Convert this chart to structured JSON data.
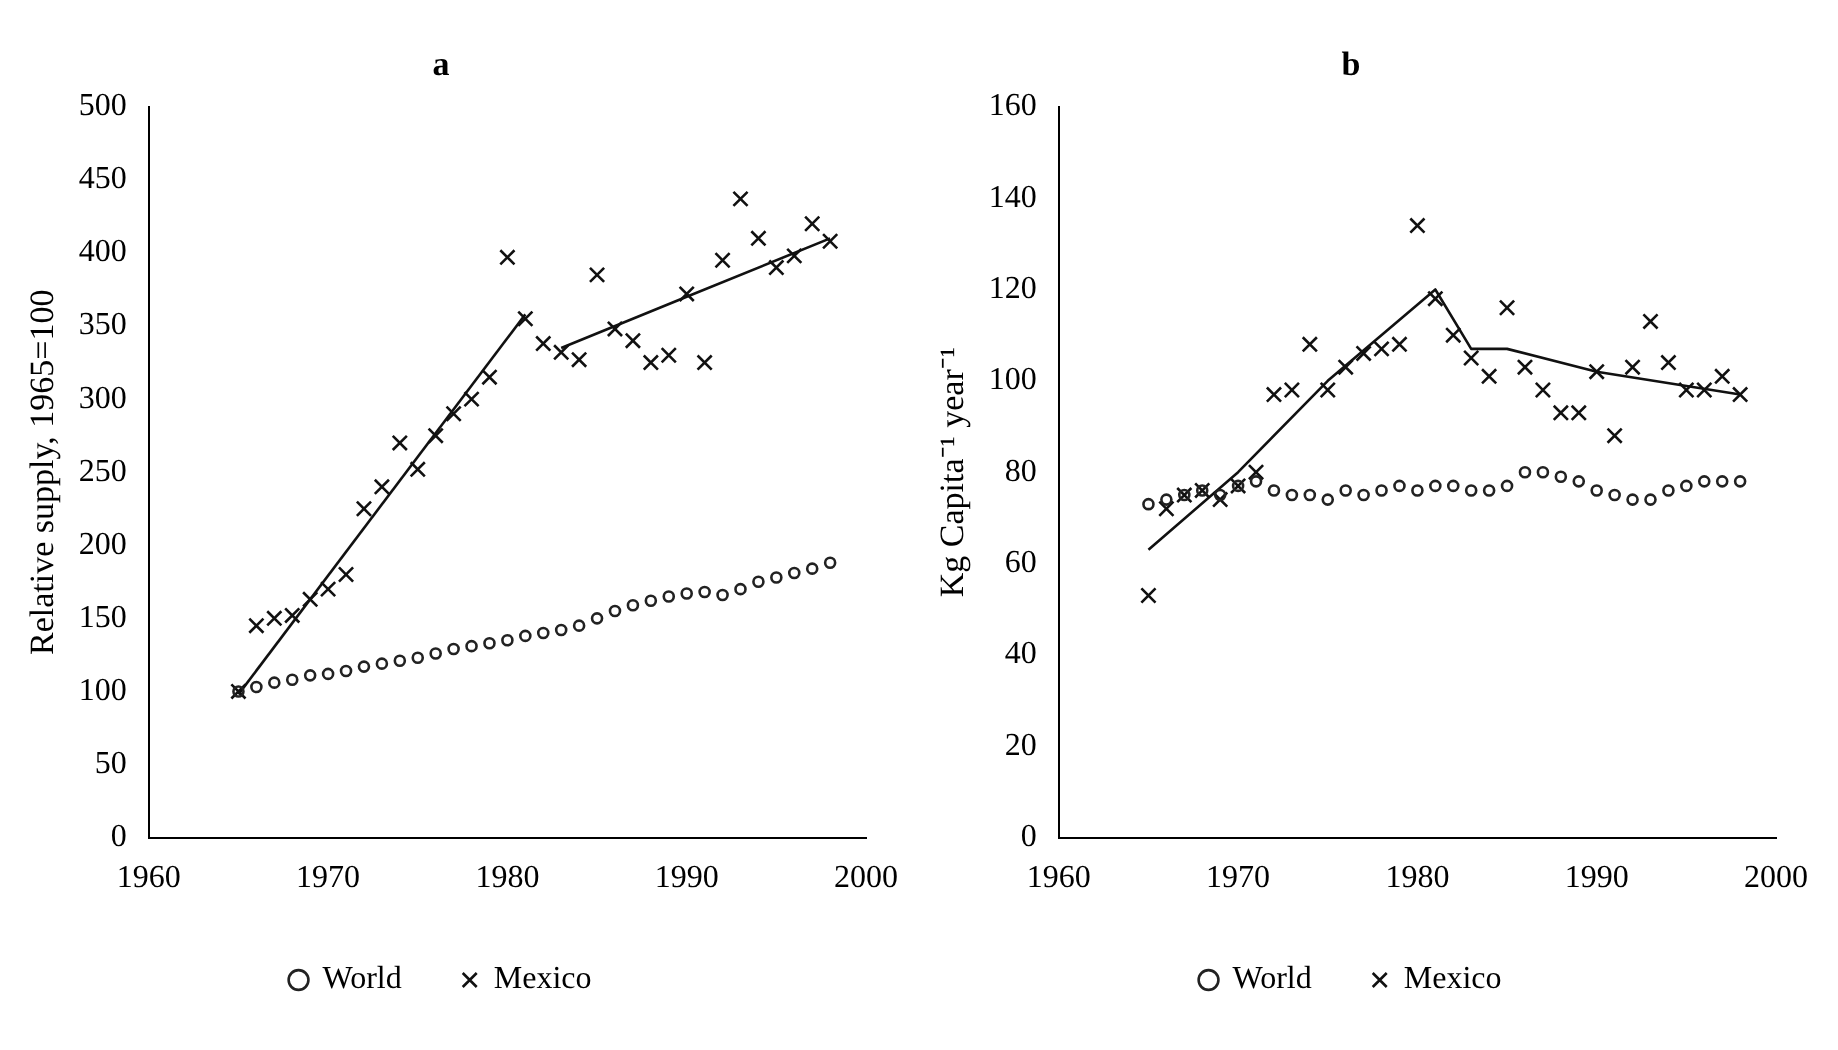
{
  "chart_data": [
    {
      "type": "scatter",
      "title": "a",
      "ylabel": "Relative supply, 1965=100",
      "xlim": [
        1960,
        2000
      ],
      "xticks": [
        1960,
        1970,
        1980,
        1990,
        2000
      ],
      "ylim": [
        0,
        500
      ],
      "yticks": [
        0,
        50,
        100,
        150,
        200,
        250,
        300,
        350,
        400,
        450,
        500
      ],
      "grid": false,
      "legend": "bottom",
      "x": [
        1965,
        1966,
        1967,
        1968,
        1969,
        1970,
        1971,
        1972,
        1973,
        1974,
        1975,
        1976,
        1977,
        1978,
        1979,
        1980,
        1981,
        1982,
        1983,
        1984,
        1985,
        1986,
        1987,
        1988,
        1989,
        1990,
        1991,
        1992,
        1993,
        1994,
        1995,
        1996,
        1997,
        1998
      ],
      "series": [
        {
          "name": "World",
          "type": "scatter",
          "marker": "circle",
          "color": "#222222",
          "values": [
            100,
            103,
            106,
            108,
            111,
            112,
            114,
            117,
            119,
            121,
            123,
            126,
            129,
            131,
            133,
            135,
            138,
            140,
            142,
            145,
            150,
            155,
            159,
            162,
            165,
            167,
            168,
            166,
            170,
            175,
            178,
            181,
            184,
            188
          ]
        },
        {
          "name": "Mexico",
          "type": "scatter",
          "marker": "cross",
          "color": "#111111",
          "values": [
            100,
            145,
            150,
            152,
            163,
            170,
            180,
            225,
            240,
            270,
            252,
            275,
            290,
            300,
            315,
            397,
            355,
            338,
            332,
            327,
            385,
            348,
            340,
            325,
            330,
            372,
            325,
            395,
            437,
            410,
            390,
            398,
            420,
            408
          ]
        },
        {
          "type": "line",
          "marker": "none",
          "color": "#111111",
          "x": [
            1965,
            1981
          ],
          "values": [
            98,
            358
          ]
        },
        {
          "type": "line",
          "marker": "none",
          "color": "#111111",
          "x": [
            1983,
            1990,
            1998
          ],
          "values": [
            335,
            370,
            410
          ]
        }
      ]
    },
    {
      "type": "scatter",
      "title": "b",
      "ylabel": "Kg Capita⁻¹ year⁻¹",
      "xlim": [
        1960,
        2000
      ],
      "xticks": [
        1960,
        1970,
        1980,
        1990,
        2000
      ],
      "ylim": [
        0,
        160
      ],
      "yticks": [
        0,
        20,
        40,
        60,
        80,
        100,
        120,
        140,
        160
      ],
      "grid": false,
      "legend": "bottom",
      "x": [
        1965,
        1966,
        1967,
        1968,
        1969,
        1970,
        1971,
        1972,
        1973,
        1974,
        1975,
        1976,
        1977,
        1978,
        1979,
        1980,
        1981,
        1982,
        1983,
        1984,
        1985,
        1986,
        1987,
        1988,
        1989,
        1990,
        1991,
        1992,
        1993,
        1994,
        1995,
        1996,
        1997,
        1998
      ],
      "series": [
        {
          "name": "World",
          "type": "scatter",
          "marker": "circle",
          "color": "#222222",
          "values": [
            73,
            74,
            75,
            76,
            75,
            77,
            78,
            76,
            75,
            75,
            74,
            76,
            75,
            76,
            77,
            76,
            77,
            77,
            76,
            76,
            77,
            80,
            80,
            79,
            78,
            76,
            75,
            74,
            74,
            76,
            77,
            78,
            78,
            78
          ]
        },
        {
          "name": "Mexico",
          "type": "scatter",
          "marker": "cross",
          "color": "#111111",
          "values": [
            53,
            72,
            75,
            76,
            74,
            77,
            80,
            97,
            98,
            108,
            98,
            103,
            106,
            107,
            108,
            134,
            118,
            110,
            105,
            101,
            116,
            103,
            98,
            93,
            93,
            102,
            88,
            103,
            113,
            104,
            98,
            98,
            101,
            97
          ]
        },
        {
          "type": "line",
          "marker": "none",
          "color": "#111111",
          "x": [
            1965,
            1970,
            1975,
            1981,
            1983,
            1985,
            1990,
            1998
          ],
          "values": [
            63,
            80,
            100,
            120,
            107,
            107,
            102,
            97
          ]
        }
      ]
    }
  ]
}
